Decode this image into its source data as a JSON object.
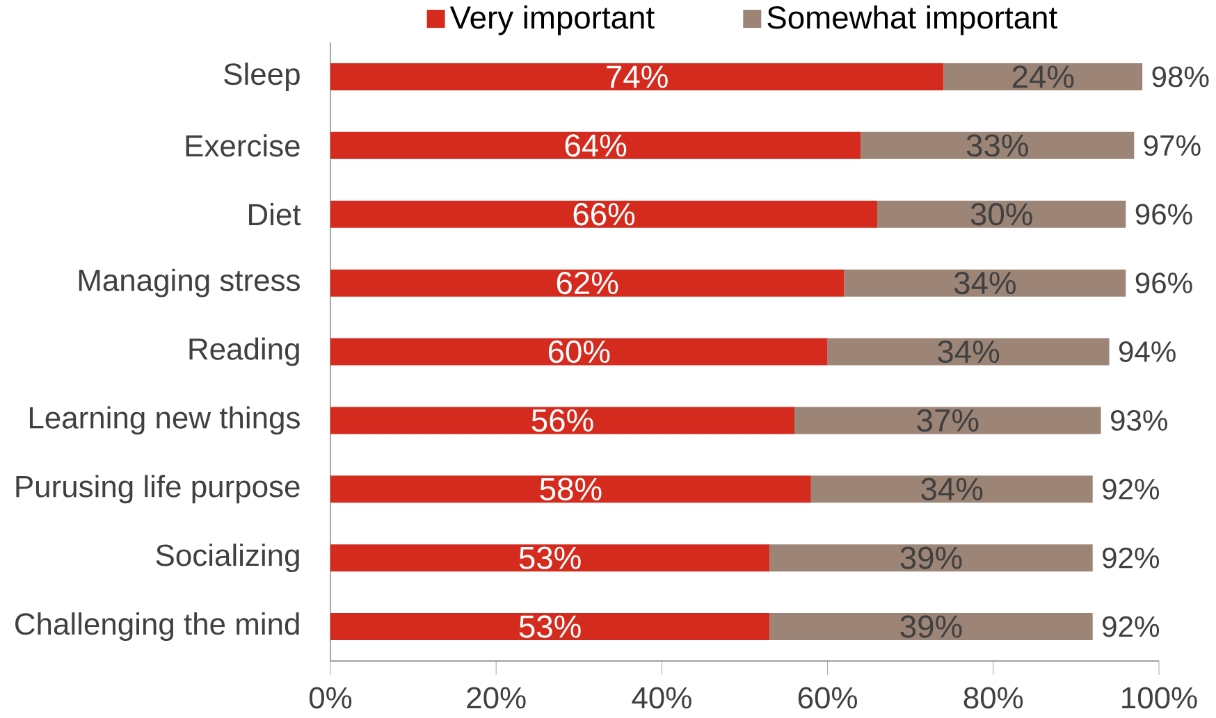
{
  "chart_data": {
    "type": "bar",
    "orientation": "horizontal",
    "stacked": true,
    "legend": "top",
    "categories": [
      "Sleep",
      "Exercise",
      "Diet",
      "Managing stress",
      "Reading",
      "Learning new things",
      "Purusing life purpose",
      "Socializing",
      "Challenging the mind"
    ],
    "series": [
      {
        "name": "Very important",
        "color": "#d52b1e",
        "values": [
          74,
          64,
          66,
          62,
          60,
          56,
          58,
          53,
          53
        ],
        "value_labels": [
          "74%",
          "64%",
          "66%",
          "62%",
          "60%",
          "56%",
          "58%",
          "53%",
          "53%"
        ]
      },
      {
        "name": "Somewhat important",
        "color": "#9c8576",
        "values": [
          24,
          33,
          30,
          34,
          34,
          37,
          34,
          39,
          39
        ],
        "value_labels": [
          "24%",
          "33%",
          "30%",
          "34%",
          "34%",
          "37%",
          "34%",
          "39%",
          "39%"
        ]
      }
    ],
    "totals": [
      "98%",
      "97%",
      "96%",
      "96%",
      "94%",
      "93%",
      "92%",
      "92%",
      "92%"
    ],
    "xlim": [
      0,
      100
    ],
    "xticks": [
      {
        "value": 0,
        "label": "0%"
      },
      {
        "value": 20,
        "label": "20%"
      },
      {
        "value": 40,
        "label": "40%"
      },
      {
        "value": 60,
        "label": "60%"
      },
      {
        "value": 80,
        "label": "80%"
      },
      {
        "value": 100,
        "label": "100%"
      }
    ]
  }
}
